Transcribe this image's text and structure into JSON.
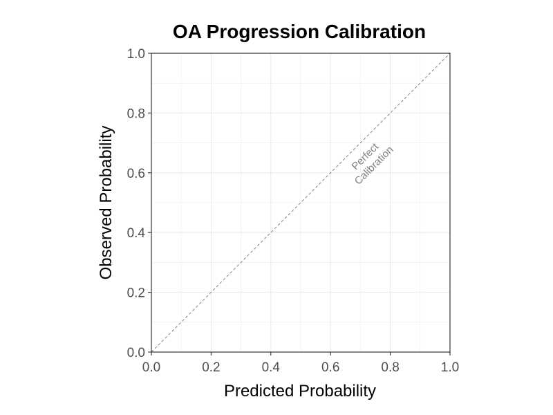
{
  "chart_data": {
    "type": "scatter",
    "title": "OA Progression Calibration",
    "xlabel": "Predicted Probability",
    "ylabel": "Observed Probability",
    "xlim": [
      0,
      1
    ],
    "ylim": [
      0,
      1
    ],
    "xticks": [
      "0.0",
      "0.2",
      "0.4",
      "0.6",
      "0.8",
      "1.0"
    ],
    "yticks": [
      "0.0",
      "0.2",
      "0.4",
      "0.6",
      "0.8",
      "1.0"
    ],
    "series": [],
    "reference_line": {
      "x": [
        0,
        1
      ],
      "y": [
        0,
        1
      ],
      "style": "dashed"
    },
    "annotation": {
      "lines": [
        "Perfect",
        "Calibration"
      ],
      "x": 0.73,
      "y": 0.64
    },
    "grid": true,
    "colors": {
      "grid": "#ebebeb",
      "reference": "#808080",
      "annotation": "#808080",
      "axis": "#333333"
    }
  }
}
